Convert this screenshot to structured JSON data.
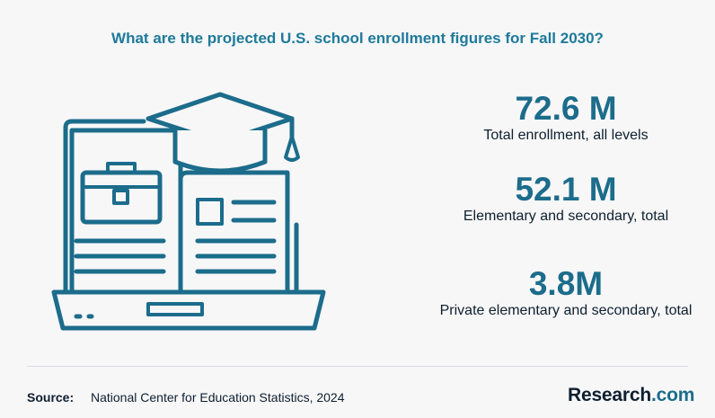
{
  "title": "What are the projected U.S. school enrollment figures for Fall 2030?",
  "illustration": {
    "icon": "laptop-book-graduation-cap-icon",
    "stroke_color": "#1c6c8b"
  },
  "stats": [
    {
      "value": "72.6 M",
      "label": "Total enrollment, all levels"
    },
    {
      "value": "52.1 M",
      "label": "Elementary and secondary, total"
    },
    {
      "value": "3.8M",
      "label": "Private elementary and secondary, total"
    }
  ],
  "footer": {
    "source_key": "Source:",
    "source_value": "National Center for Education Statistics, 2024",
    "logo_main": "Research",
    "logo_tld": ".com"
  },
  "colors": {
    "accent": "#1c6c8b",
    "title": "#1e7a9a",
    "text": "#0e1f2f",
    "background": "#f7f7f8"
  }
}
